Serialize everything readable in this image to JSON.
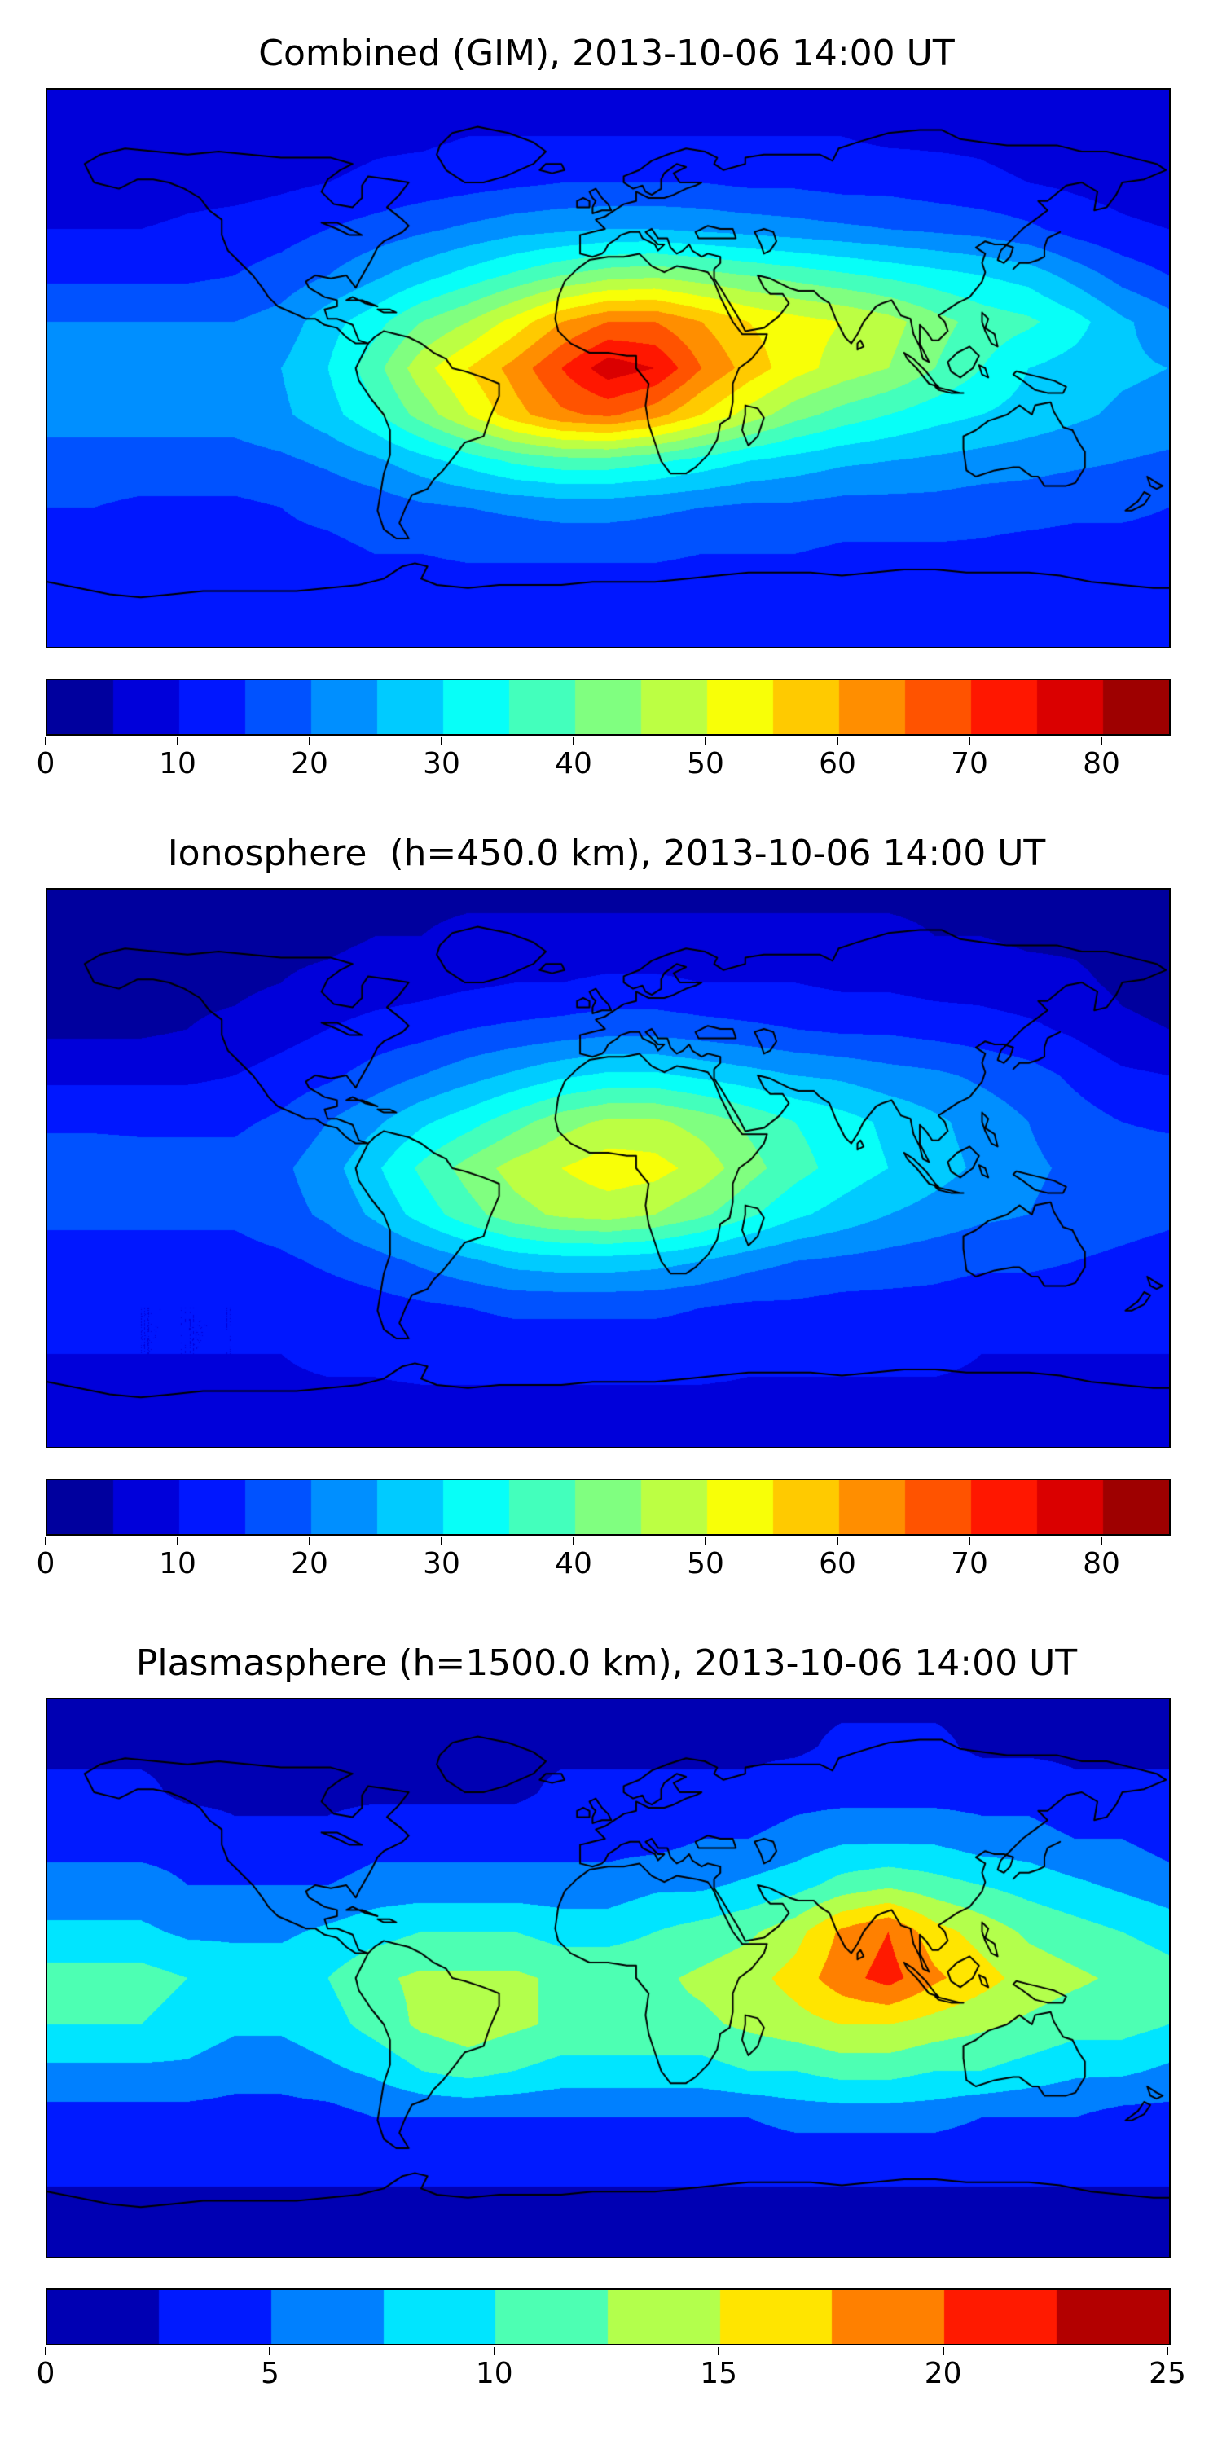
{
  "figure": {
    "background": "#ffffff",
    "coastline_color": "#000000",
    "map_border_color": "#000000"
  },
  "chart_data": [
    {
      "type": "heatmap",
      "title": "Combined (GIM), 2013-10-06 14:00 UT",
      "layer": "Combined (GIM)",
      "timestamp": "2013-10-06 14:00 UT",
      "projection": "equirectangular",
      "colormap": "jet",
      "level_min": 0,
      "level_max": 85,
      "level_step": 5,
      "colorbar_ticks": [
        "0",
        "10",
        "20",
        "30",
        "40",
        "50",
        "60",
        "70",
        "80"
      ],
      "colorbar_tick_values": [
        0,
        10,
        20,
        30,
        40,
        50,
        60,
        70,
        80
      ],
      "lon": [
        -180,
        -165,
        -150,
        -135,
        -120,
        -105,
        -90,
        -75,
        -60,
        -45,
        -30,
        -15,
        0,
        15,
        30,
        45,
        60,
        75,
        90,
        105,
        120,
        135,
        150,
        165,
        180
      ],
      "lat": [
        90,
        75,
        60,
        45,
        30,
        15,
        0,
        -15,
        -30,
        -45,
        -60,
        -75,
        -90
      ],
      "values": [
        [
          8,
          8,
          8,
          8,
          8,
          8,
          8,
          8,
          8,
          8,
          8,
          8,
          8,
          8,
          8,
          8,
          8,
          8,
          8,
          8,
          8,
          8,
          8,
          8,
          8
        ],
        [
          7,
          7,
          7,
          7,
          7,
          8,
          8,
          9,
          9,
          10,
          10,
          10,
          10,
          10,
          10,
          10,
          10,
          10,
          9,
          9,
          9,
          8,
          8,
          7,
          7
        ],
        [
          7,
          7,
          7,
          8,
          8,
          9,
          10,
          11,
          12,
          13,
          14,
          15,
          15,
          15,
          15,
          14,
          14,
          13,
          13,
          12,
          11,
          10,
          9,
          8,
          7
        ],
        [
          10,
          10,
          10,
          11,
          12,
          13,
          15,
          17,
          19,
          21,
          23,
          24,
          25,
          25,
          24,
          23,
          22,
          21,
          20,
          19,
          18,
          16,
          13,
          11,
          10
        ],
        [
          14,
          14,
          14,
          14,
          15,
          17,
          20,
          24,
          28,
          32,
          36,
          40,
          43,
          44,
          42,
          40,
          38,
          36,
          34,
          32,
          30,
          28,
          23,
          18,
          15
        ],
        [
          20,
          20,
          20,
          20,
          20,
          22,
          28,
          33,
          40,
          45,
          52,
          60,
          65,
          65,
          60,
          55,
          52,
          50,
          47,
          42,
          38,
          36,
          32,
          26,
          22
        ],
        [
          25,
          25,
          24,
          24,
          23,
          25,
          30,
          38,
          48,
          55,
          62,
          70,
          78,
          75,
          65,
          58,
          52,
          48,
          45,
          40,
          35,
          30,
          28,
          26,
          25
        ],
        [
          22,
          22,
          22,
          22,
          22,
          24,
          28,
          34,
          42,
          50,
          58,
          64,
          66,
          62,
          55,
          48,
          42,
          38,
          35,
          32,
          30,
          28,
          26,
          24,
          23
        ],
        [
          18,
          18,
          18,
          18,
          18,
          19,
          21,
          24,
          28,
          32,
          36,
          38,
          38,
          36,
          33,
          30,
          28,
          26,
          25,
          24,
          23,
          22,
          21,
          20,
          19
        ],
        [
          15,
          15,
          14,
          14,
          14,
          15,
          16,
          17,
          19,
          20,
          21,
          22,
          22,
          21,
          20,
          19,
          19,
          18,
          18,
          18,
          17,
          17,
          16,
          16,
          15
        ],
        [
          13,
          13,
          13,
          13,
          13,
          14,
          14,
          15,
          15,
          16,
          16,
          16,
          16,
          16,
          15,
          15,
          15,
          14,
          14,
          14,
          14,
          13,
          13,
          13,
          13
        ],
        [
          11,
          11,
          11,
          11,
          11,
          11,
          11,
          11,
          11,
          11,
          11,
          11,
          11,
          11,
          11,
          11,
          11,
          11,
          11,
          11,
          11,
          11,
          11,
          11,
          11
        ],
        [
          10,
          10,
          10,
          10,
          10,
          10,
          10,
          10,
          10,
          10,
          10,
          10,
          10,
          10,
          10,
          10,
          10,
          10,
          10,
          10,
          10,
          10,
          10,
          10,
          10
        ]
      ]
    },
    {
      "type": "heatmap",
      "title": "Ionosphere  (h=450.0 km), 2013-10-06 14:00 UT",
      "layer": "Ionosphere (h=450.0 km)",
      "timestamp": "2013-10-06 14:00 UT",
      "projection": "equirectangular",
      "colormap": "jet",
      "level_min": 0,
      "level_max": 85,
      "level_step": 5,
      "colorbar_ticks": [
        "0",
        "10",
        "20",
        "30",
        "40",
        "50",
        "60",
        "70",
        "80"
      ],
      "colorbar_tick_values": [
        0,
        10,
        20,
        30,
        40,
        50,
        60,
        70,
        80
      ],
      "lon": [
        -180,
        -165,
        -150,
        -135,
        -120,
        -105,
        -90,
        -75,
        -60,
        -45,
        -30,
        -15,
        0,
        15,
        30,
        45,
        60,
        75,
        90,
        105,
        120,
        135,
        150,
        165,
        180
      ],
      "lat": [
        90,
        75,
        60,
        45,
        30,
        15,
        0,
        -15,
        -30,
        -45,
        -60,
        -75,
        -90
      ],
      "values": [
        [
          4,
          4,
          4,
          4,
          4,
          4,
          4,
          4,
          4,
          4,
          4,
          4,
          4,
          4,
          4,
          4,
          4,
          4,
          4,
          4,
          4,
          4,
          4,
          4,
          4
        ],
        [
          3,
          3,
          3,
          3,
          3,
          4,
          4,
          5,
          5,
          6,
          6,
          6,
          6,
          6,
          6,
          6,
          6,
          6,
          6,
          5,
          5,
          4,
          4,
          3,
          3
        ],
        [
          3,
          3,
          3,
          4,
          4,
          5,
          6,
          7,
          8,
          9,
          10,
          10,
          11,
          11,
          10,
          10,
          10,
          9,
          9,
          8,
          8,
          7,
          6,
          4,
          3
        ],
        [
          4,
          4,
          4,
          5,
          6,
          8,
          10,
          12,
          13,
          15,
          16,
          17,
          18,
          18,
          17,
          16,
          15,
          14,
          14,
          13,
          12,
          11,
          9,
          6,
          5
        ],
        [
          9,
          9,
          9,
          9,
          10,
          12,
          14,
          17,
          20,
          23,
          26,
          29,
          31,
          31,
          29,
          27,
          25,
          24,
          22,
          21,
          19,
          17,
          14,
          11,
          10
        ],
        [
          14,
          14,
          14,
          14,
          14,
          16,
          20,
          24,
          29,
          33,
          38,
          43,
          46,
          46,
          43,
          39,
          35,
          32,
          29,
          26,
          23,
          20,
          17,
          15,
          14
        ],
        [
          18,
          18,
          17,
          17,
          17,
          19,
          23,
          29,
          36,
          42,
          47,
          50,
          53,
          52,
          48,
          42,
          37,
          33,
          30,
          27,
          24,
          21,
          19,
          18,
          18
        ],
        [
          16,
          16,
          16,
          16,
          16,
          18,
          21,
          26,
          32,
          38,
          43,
          46,
          47,
          45,
          41,
          36,
          31,
          28,
          25,
          23,
          21,
          20,
          18,
          17,
          16
        ],
        [
          13,
          13,
          13,
          13,
          13,
          14,
          16,
          18,
          21,
          24,
          27,
          28,
          28,
          27,
          25,
          22,
          20,
          19,
          18,
          17,
          16,
          16,
          15,
          14,
          13
        ],
        [
          11,
          11,
          10,
          10,
          10,
          11,
          12,
          13,
          14,
          15,
          16,
          16,
          16,
          16,
          15,
          14,
          14,
          13,
          13,
          13,
          12,
          12,
          12,
          11,
          11
        ],
        [
          10,
          10,
          10,
          10,
          10,
          10,
          11,
          11,
          12,
          12,
          12,
          12,
          12,
          12,
          12,
          11,
          11,
          11,
          11,
          11,
          10,
          10,
          10,
          10,
          10
        ],
        [
          9,
          9,
          9,
          9,
          9,
          9,
          9,
          9,
          9,
          9,
          9,
          9,
          9,
          9,
          9,
          9,
          9,
          9,
          9,
          9,
          9,
          9,
          9,
          9,
          9
        ],
        [
          9,
          9,
          9,
          9,
          9,
          9,
          9,
          9,
          9,
          9,
          9,
          9,
          9,
          9,
          9,
          9,
          9,
          9,
          9,
          9,
          9,
          9,
          9,
          9,
          9
        ]
      ]
    },
    {
      "type": "heatmap",
      "title": "Plasmasphere (h=1500.0 km), 2013-10-06 14:00 UT",
      "layer": "Plasmasphere (h=1500.0 km)",
      "timestamp": "2013-10-06 14:00 UT",
      "projection": "equirectangular",
      "colormap": "jet",
      "level_min": 0,
      "level_max": 25,
      "level_step": 2.5,
      "colorbar_ticks": [
        "0",
        "5",
        "10",
        "15",
        "20",
        "25"
      ],
      "colorbar_tick_values": [
        0,
        5,
        10,
        15,
        20,
        25
      ],
      "lon": [
        -180,
        -165,
        -150,
        -135,
        -120,
        -105,
        -90,
        -75,
        -60,
        -45,
        -30,
        -15,
        0,
        15,
        30,
        45,
        60,
        75,
        90,
        105,
        120,
        135,
        150,
        165,
        180
      ],
      "lat": [
        90,
        75,
        60,
        45,
        30,
        15,
        0,
        -15,
        -30,
        -45,
        -60,
        -75,
        -90
      ],
      "values": [
        [
          2,
          2,
          2,
          2,
          2,
          2,
          2,
          2,
          2,
          2,
          2,
          2,
          2,
          2,
          2,
          2,
          2,
          2,
          2,
          2,
          2,
          2,
          2,
          2,
          2
        ],
        [
          2,
          2,
          2,
          2,
          2,
          2,
          2,
          2,
          2,
          2,
          2,
          2,
          2,
          2,
          2,
          2,
          2,
          3,
          3,
          3,
          2,
          2,
          2,
          2,
          2
        ],
        [
          3,
          3,
          3,
          2,
          2,
          2,
          2,
          2,
          2,
          2,
          2,
          3,
          3,
          3,
          3,
          3,
          4,
          4,
          4,
          4,
          4,
          4,
          3,
          3,
          3
        ],
        [
          4,
          4,
          4,
          4,
          3,
          3,
          3,
          4,
          4,
          4,
          4,
          4,
          4,
          4,
          5,
          5,
          6,
          7,
          7,
          7,
          6,
          6,
          5,
          5,
          4
        ],
        [
          6,
          6,
          6,
          5,
          5,
          5,
          5,
          6,
          6,
          6,
          6,
          6,
          6,
          7,
          7,
          8,
          9,
          11,
          12,
          11,
          10,
          9,
          8,
          7,
          6
        ],
        [
          8,
          8,
          8,
          7,
          7,
          7,
          8,
          9,
          10,
          10,
          10,
          9,
          9,
          10,
          11,
          12,
          14,
          18,
          20,
          16,
          14,
          12,
          11,
          10,
          9
        ],
        [
          11,
          11,
          11,
          10,
          9,
          9,
          10,
          12,
          13,
          13,
          13,
          12,
          12,
          12,
          13,
          14,
          16,
          19,
          21,
          18,
          16,
          14,
          13,
          12,
          11
        ],
        [
          10,
          10,
          10,
          9,
          8,
          8,
          9,
          11,
          13,
          14,
          13,
          12,
          12,
          12,
          12,
          13,
          14,
          15,
          15,
          14,
          13,
          12,
          11,
          11,
          10
        ],
        [
          7,
          7,
          7,
          7,
          6,
          6,
          7,
          8,
          10,
          11,
          10,
          9,
          9,
          9,
          9,
          10,
          10,
          11,
          11,
          10,
          10,
          9,
          8,
          8,
          7
        ],
        [
          4,
          4,
          4,
          4,
          4,
          4,
          4,
          5,
          5,
          5,
          5,
          5,
          5,
          5,
          5,
          5,
          6,
          6,
          6,
          6,
          5,
          5,
          5,
          4,
          4
        ],
        [
          3,
          3,
          3,
          3,
          3,
          3,
          3,
          3,
          3,
          3,
          3,
          3,
          3,
          3,
          3,
          3,
          3,
          3,
          3,
          3,
          3,
          3,
          3,
          3,
          3
        ],
        [
          2,
          2,
          2,
          2,
          2,
          2,
          2,
          2,
          2,
          2,
          2,
          2,
          2,
          2,
          2,
          2,
          2,
          2,
          2,
          2,
          2,
          2,
          2,
          2,
          2
        ],
        [
          2,
          2,
          2,
          2,
          2,
          2,
          2,
          2,
          2,
          2,
          2,
          2,
          2,
          2,
          2,
          2,
          2,
          2,
          2,
          2,
          2,
          2,
          2,
          2,
          2
        ]
      ]
    }
  ]
}
